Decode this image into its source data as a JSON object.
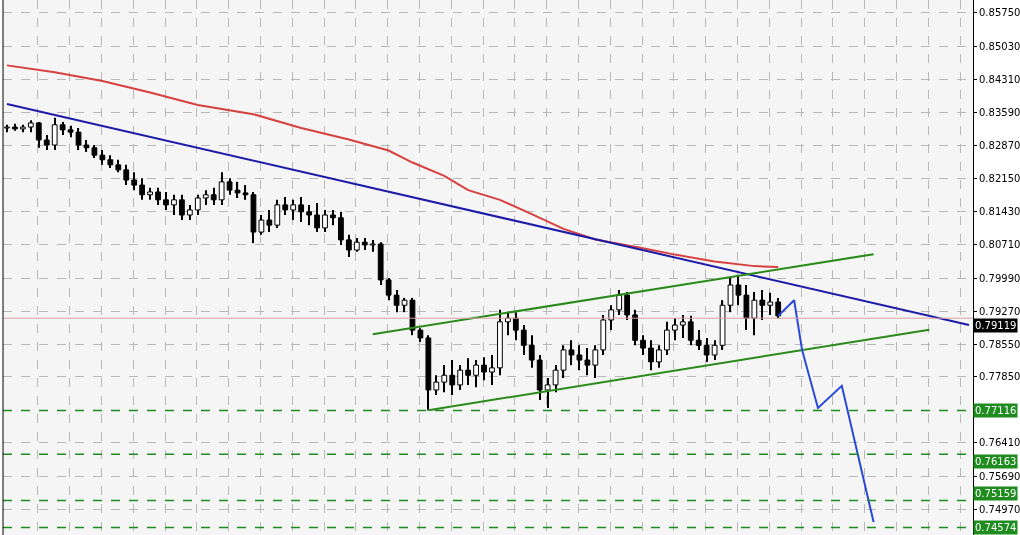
{
  "chart_data": {
    "type": "candlestick",
    "categories": [
      null,
      null,
      null,
      null,
      null,
      null,
      null,
      null,
      null,
      null,
      null,
      null,
      null,
      null,
      null,
      null,
      null,
      null,
      null,
      null,
      null,
      null,
      null,
      null,
      null,
      null,
      null,
      null,
      null,
      null,
      null,
      null,
      null,
      null,
      null,
      null,
      null,
      null,
      null,
      null,
      null,
      null,
      null,
      null,
      null,
      null,
      null,
      null,
      null,
      null,
      null,
      null,
      null,
      null,
      null,
      null,
      null,
      null,
      null,
      null,
      null,
      null,
      null,
      null,
      null,
      null,
      null,
      null,
      null,
      null,
      null,
      null,
      null,
      null,
      null,
      null,
      null,
      null,
      null,
      null,
      null,
      null,
      null,
      null,
      null,
      null,
      null,
      null,
      null,
      null,
      null,
      null,
      null,
      null,
      null,
      null,
      null,
      null,
      null,
      null,
      null,
      null,
      null,
      null,
      null,
      null,
      null,
      null,
      null,
      null,
      null,
      null,
      null,
      null,
      null,
      null,
      null,
      null,
      null,
      null,
      null,
      null
    ],
    "ohlc": [
      [
        0.8325,
        0.8332,
        0.8316,
        0.8327
      ],
      [
        0.8327,
        0.8334,
        0.8319,
        0.8323
      ],
      [
        0.8323,
        0.8332,
        0.8316,
        0.8327
      ],
      [
        0.8327,
        0.8342,
        0.8316,
        0.8336
      ],
      [
        0.8336,
        0.8338,
        0.8282,
        0.8299
      ],
      [
        0.8299,
        0.831,
        0.8277,
        0.8288
      ],
      [
        0.8288,
        0.8347,
        0.8277,
        0.8332
      ],
      [
        0.8332,
        0.8338,
        0.831,
        0.8321
      ],
      [
        0.8321,
        0.833,
        0.8305,
        0.8316
      ],
      [
        0.8316,
        0.8325,
        0.8277,
        0.8288
      ],
      [
        0.8288,
        0.8299,
        0.8273,
        0.8282
      ],
      [
        0.8282,
        0.8288,
        0.826,
        0.8266
      ],
      [
        0.8266,
        0.8277,
        0.8245,
        0.8256
      ],
      [
        0.8256,
        0.8266,
        0.8238,
        0.8245
      ],
      [
        0.8245,
        0.8256,
        0.8229,
        0.8234
      ],
      [
        0.8234,
        0.8245,
        0.8201,
        0.8212
      ],
      [
        0.8212,
        0.8229,
        0.819,
        0.8201
      ],
      [
        0.8201,
        0.8216,
        0.8169,
        0.818
      ],
      [
        0.818,
        0.8195,
        0.8169,
        0.8186
      ],
      [
        0.8186,
        0.8195,
        0.8158,
        0.8169
      ],
      [
        0.8169,
        0.8186,
        0.8147,
        0.8158
      ],
      [
        0.8158,
        0.818,
        0.8136,
        0.8169
      ],
      [
        0.8169,
        0.818,
        0.8125,
        0.8136
      ],
      [
        0.8136,
        0.8158,
        0.8125,
        0.8147
      ],
      [
        0.8147,
        0.818,
        0.8136,
        0.8173
      ],
      [
        0.8173,
        0.819,
        0.8158,
        0.818
      ],
      [
        0.818,
        0.8195,
        0.8158,
        0.8169
      ],
      [
        0.8169,
        0.8229,
        0.8158,
        0.8208
      ],
      [
        0.8208,
        0.8216,
        0.818,
        0.819
      ],
      [
        0.819,
        0.8208,
        0.8173,
        0.8184
      ],
      [
        0.8184,
        0.8201,
        0.8169,
        0.818
      ],
      [
        0.818,
        0.8186,
        0.8075,
        0.8099
      ],
      [
        0.8099,
        0.8136,
        0.8093,
        0.8125
      ],
      [
        0.8125,
        0.8147,
        0.8099,
        0.8114
      ],
      [
        0.8114,
        0.8169,
        0.8108,
        0.8158
      ],
      [
        0.8158,
        0.8175,
        0.8136,
        0.8147
      ],
      [
        0.8147,
        0.8169,
        0.8125,
        0.8158
      ],
      [
        0.8158,
        0.8175,
        0.8121,
        0.8143
      ],
      [
        0.8143,
        0.8158,
        0.8114,
        0.8136
      ],
      [
        0.8136,
        0.8162,
        0.8099,
        0.8108
      ],
      [
        0.8108,
        0.8147,
        0.8099,
        0.8136
      ],
      [
        0.8136,
        0.8147,
        0.8114,
        0.813
      ],
      [
        0.813,
        0.8143,
        0.8071,
        0.8082
      ],
      [
        0.8082,
        0.8093,
        0.8045,
        0.806
      ],
      [
        0.806,
        0.8086,
        0.8056,
        0.8077
      ],
      [
        0.8077,
        0.8086,
        0.806,
        0.8071
      ],
      [
        0.8071,
        0.8082,
        0.8056,
        0.8073
      ],
      [
        0.8073,
        0.8077,
        0.7984,
        0.7995
      ],
      [
        0.7995,
        0.7999,
        0.7951,
        0.7962
      ],
      [
        0.7962,
        0.7973,
        0.7925,
        0.794
      ],
      [
        0.794,
        0.7956,
        0.7925,
        0.7951
      ],
      [
        0.7951,
        0.7956,
        0.7875,
        0.7886
      ],
      [
        0.7886,
        0.789,
        0.786,
        0.7869
      ],
      [
        0.7869,
        0.7875,
        0.7712,
        0.7756
      ],
      [
        0.7756,
        0.7788,
        0.7745,
        0.7773
      ],
      [
        0.7773,
        0.781,
        0.7751,
        0.7788
      ],
      [
        0.7788,
        0.7821,
        0.7745,
        0.7767
      ],
      [
        0.7767,
        0.781,
        0.7756,
        0.7799
      ],
      [
        0.7799,
        0.7825,
        0.7767,
        0.7788
      ],
      [
        0.7788,
        0.7821,
        0.7762,
        0.781
      ],
      [
        0.781,
        0.7827,
        0.7777,
        0.7795
      ],
      [
        0.7795,
        0.7832,
        0.7767,
        0.7804
      ],
      [
        0.7804,
        0.793,
        0.7788,
        0.7904
      ],
      [
        0.7904,
        0.7923,
        0.7875,
        0.7912
      ],
      [
        0.7912,
        0.7925,
        0.7864,
        0.7886
      ],
      [
        0.7886,
        0.7897,
        0.7832,
        0.7853
      ],
      [
        0.7853,
        0.7875,
        0.7804,
        0.7821
      ],
      [
        0.7821,
        0.7832,
        0.7734,
        0.7756
      ],
      [
        0.7756,
        0.7782,
        0.7717,
        0.7767
      ],
      [
        0.7767,
        0.781,
        0.7751,
        0.7799
      ],
      [
        0.7799,
        0.7853,
        0.7782,
        0.7843
      ],
      [
        0.7843,
        0.7864,
        0.781,
        0.7832
      ],
      [
        0.7832,
        0.7853,
        0.7799,
        0.7821
      ],
      [
        0.7821,
        0.7847,
        0.7788,
        0.781
      ],
      [
        0.781,
        0.7853,
        0.7782,
        0.7843
      ],
      [
        0.7843,
        0.7919,
        0.7832,
        0.7908
      ],
      [
        0.7908,
        0.794,
        0.7886,
        0.793
      ],
      [
        0.793,
        0.7973,
        0.7919,
        0.7962
      ],
      [
        0.7962,
        0.7969,
        0.7908,
        0.7919
      ],
      [
        0.7919,
        0.793,
        0.7853,
        0.7864
      ],
      [
        0.7864,
        0.7875,
        0.7832,
        0.7847
      ],
      [
        0.7847,
        0.7864,
        0.7799,
        0.7817
      ],
      [
        0.7817,
        0.7853,
        0.7804,
        0.7843
      ],
      [
        0.7843,
        0.7904,
        0.7832,
        0.7886
      ],
      [
        0.7886,
        0.7912,
        0.7864,
        0.7897
      ],
      [
        0.7897,
        0.7919,
        0.7869,
        0.7904
      ],
      [
        0.7904,
        0.7917,
        0.7853,
        0.7864
      ],
      [
        0.7864,
        0.7886,
        0.7843,
        0.7853
      ],
      [
        0.7853,
        0.7869,
        0.7817,
        0.7832
      ],
      [
        0.7832,
        0.7864,
        0.7821,
        0.7853
      ],
      [
        0.7853,
        0.7951,
        0.7843,
        0.794
      ],
      [
        0.794,
        0.7999,
        0.7925,
        0.7984
      ],
      [
        0.7984,
        0.8006,
        0.794,
        0.7962
      ],
      [
        0.7962,
        0.7984,
        0.7886,
        0.7912
      ],
      [
        0.7912,
        0.7969,
        0.7875,
        0.7951
      ],
      [
        0.7951,
        0.7973,
        0.7908,
        0.794
      ],
      [
        0.794,
        0.7967,
        0.7919,
        0.7947
      ],
      [
        0.7947,
        0.7956,
        0.7912,
        0.7917
      ],
      null,
      null,
      null,
      null,
      null,
      null,
      null,
      null,
      null,
      null,
      null,
      null,
      null,
      null,
      null,
      null,
      null,
      null,
      null,
      null,
      null,
      null,
      null,
      null
    ],
    "series": [
      {
        "type": "line",
        "color": "#d84040",
        "values": [
          0.8461,
          null,
          null,
          null,
          null,
          null,
          0.8446,
          null,
          null,
          null,
          null,
          null,
          0.8427,
          null,
          null,
          null,
          null,
          null,
          0.8402,
          null,
          null,
          null,
          null,
          null,
          0.8375,
          null,
          null,
          null,
          null,
          null,
          null,
          0.8355,
          null,
          null,
          null,
          null,
          null,
          0.8325,
          null,
          null,
          null,
          null,
          null,
          0.83,
          null,
          null,
          null,
          null,
          0.8276,
          null,
          null,
          0.825,
          null,
          null,
          null,
          0.8221,
          null,
          null,
          0.819,
          null,
          null,
          null,
          0.8169,
          null,
          null,
          null,
          0.8138,
          null,
          null,
          null,
          0.8106,
          null,
          null,
          null,
          0.8083,
          null,
          null,
          null,
          null,
          null,
          0.8064,
          null,
          null,
          null,
          0.805,
          null,
          null,
          null,
          null,
          0.8035,
          null,
          null,
          null,
          null,
          0.8025,
          null,
          null,
          0.8023,
          null,
          null,
          null,
          null,
          null,
          null,
          null,
          null,
          null,
          null,
          null,
          null,
          null,
          null,
          null,
          null,
          null,
          null,
          null,
          null,
          null,
          null,
          null,
          null
        ]
      },
      {
        "type": "line",
        "color": "#1c1ca8",
        "values": [
          0.8377,
          null,
          null,
          null,
          null,
          null,
          null,
          null,
          null,
          null,
          null,
          null,
          null,
          null,
          null,
          null,
          null,
          null,
          null,
          null,
          null,
          null,
          null,
          null,
          null,
          null,
          null,
          null,
          null,
          null,
          null,
          null,
          null,
          null,
          null,
          null,
          null,
          null,
          null,
          null,
          null,
          null,
          null,
          null,
          null,
          null,
          null,
          null,
          null,
          null,
          null,
          null,
          null,
          null,
          null,
          null,
          null,
          null,
          null,
          null,
          null,
          null,
          null,
          null,
          null,
          null,
          null,
          null,
          null,
          null,
          null,
          null,
          null,
          null,
          null,
          null,
          null,
          null,
          null,
          null,
          null,
          null,
          null,
          null,
          null,
          null,
          null,
          null,
          null,
          null,
          null,
          null,
          null,
          null,
          null,
          null,
          null,
          null,
          null,
          null,
          null,
          null,
          null,
          null,
          null,
          null,
          null,
          null,
          null,
          null,
          null,
          null,
          null,
          null,
          null,
          null,
          null,
          null,
          null,
          null,
          null,
          0.7897
        ]
      },
      {
        "type": "line",
        "color": "#2a8a1a",
        "values": [
          null,
          null,
          null,
          null,
          null,
          null,
          null,
          null,
          null,
          null,
          null,
          null,
          null,
          null,
          null,
          null,
          null,
          null,
          null,
          null,
          null,
          null,
          null,
          null,
          null,
          null,
          null,
          null,
          null,
          null,
          null,
          null,
          null,
          null,
          null,
          null,
          null,
          null,
          null,
          null,
          null,
          null,
          null,
          null,
          null,
          null,
          0.7877,
          null,
          null,
          null,
          null,
          null,
          null,
          null,
          null,
          null,
          null,
          null,
          null,
          null,
          null,
          null,
          null,
          null,
          null,
          null,
          null,
          null,
          null,
          null,
          null,
          null,
          null,
          null,
          null,
          null,
          null,
          null,
          null,
          null,
          null,
          null,
          null,
          null,
          null,
          null,
          null,
          null,
          null,
          null,
          null,
          null,
          null,
          null,
          null,
          null,
          null,
          null,
          null,
          null,
          null,
          null,
          null,
          null,
          null,
          null,
          null,
          null,
          null,
          0.8051,
          null,
          null,
          null,
          null,
          null,
          null,
          null,
          null,
          null,
          null,
          null,
          null
        ]
      },
      {
        "type": "line",
        "color": "#2a8a1a",
        "values": [
          null,
          null,
          null,
          null,
          null,
          null,
          null,
          null,
          null,
          null,
          null,
          null,
          null,
          null,
          null,
          null,
          null,
          null,
          null,
          null,
          null,
          null,
          null,
          null,
          null,
          null,
          null,
          null,
          null,
          null,
          null,
          null,
          null,
          null,
          null,
          null,
          null,
          null,
          null,
          null,
          null,
          null,
          null,
          null,
          null,
          null,
          null,
          null,
          null,
          null,
          null,
          null,
          null,
          0.7712,
          null,
          null,
          null,
          null,
          null,
          null,
          null,
          null,
          null,
          null,
          null,
          null,
          null,
          null,
          null,
          null,
          null,
          null,
          null,
          null,
          null,
          null,
          null,
          null,
          null,
          null,
          null,
          null,
          null,
          null,
          null,
          null,
          null,
          null,
          null,
          null,
          null,
          null,
          null,
          null,
          null,
          null,
          null,
          null,
          null,
          null,
          null,
          null,
          null,
          null,
          null,
          null,
          null,
          null,
          null,
          null,
          null,
          null,
          null,
          null,
          null,
          null,
          0.7887,
          null,
          null,
          null,
          null,
          null
        ]
      },
      {
        "type": "line",
        "color": "#2848d8",
        "values": [
          null,
          null,
          null,
          null,
          null,
          null,
          null,
          null,
          null,
          null,
          null,
          null,
          null,
          null,
          null,
          null,
          null,
          null,
          null,
          null,
          null,
          null,
          null,
          null,
          null,
          null,
          null,
          null,
          null,
          null,
          null,
          null,
          null,
          null,
          null,
          null,
          null,
          null,
          null,
          null,
          null,
          null,
          null,
          null,
          null,
          null,
          null,
          null,
          null,
          null,
          null,
          null,
          null,
          null,
          null,
          null,
          null,
          null,
          null,
          null,
          null,
          null,
          null,
          null,
          null,
          null,
          null,
          null,
          null,
          null,
          null,
          null,
          null,
          null,
          null,
          null,
          null,
          null,
          null,
          null,
          null,
          null,
          null,
          null,
          null,
          null,
          null,
          null,
          null,
          null,
          null,
          null,
          null,
          null,
          null,
          null,
          null,
          0.7917,
          null,
          0.7951,
          0.7843,
          null,
          0.7717,
          null,
          null,
          0.7765,
          null,
          null,
          null,
          0.7469,
          null,
          null,
          null,
          null,
          null,
          null,
          null,
          null,
          null,
          null,
          null,
          null
        ]
      }
    ],
    "ref_lines": [
      {
        "axis": "y",
        "value": 0.79119,
        "label": "0.79119",
        "color": "#d8a0a0",
        "line_style": "solid"
      },
      {
        "axis": "y",
        "value": 0.77116,
        "label": "0.77116",
        "color": "#1e8c1e",
        "line_style": "dashed"
      },
      {
        "axis": "y",
        "value": 0.76163,
        "label": "0.76163",
        "color": "#1e8c1e",
        "line_style": "dashed"
      },
      {
        "axis": "y",
        "value": 0.75159,
        "label": "0.75159",
        "color": "#1e8c1e",
        "line_style": "dashed"
      },
      {
        "axis": "y",
        "value": 0.74574,
        "label": "0.74574",
        "color": "#1e8c1e",
        "line_style": "dashed"
      }
    ],
    "ylim": [
      0.7441,
      0.8603
    ],
    "yticks": [
      {
        "value": 0.8575,
        "label": "0.85750"
      },
      {
        "value": 0.8503,
        "label": "0.85030"
      },
      {
        "value": 0.8431,
        "label": "0.84310"
      },
      {
        "value": 0.8359,
        "label": "0.83590"
      },
      {
        "value": 0.8287,
        "label": "0.82870"
      },
      {
        "value": 0.8215,
        "label": "0.82150"
      },
      {
        "value": 0.8143,
        "label": "0.81430"
      },
      {
        "value": 0.8071,
        "label": "0.80710"
      },
      {
        "value": 0.7999,
        "label": "0.79990"
      },
      {
        "value": 0.7927,
        "label": "0.79270"
      },
      {
        "value": 0.7855,
        "label": "0.78550"
      },
      {
        "value": 0.7785,
        "label": "0.77850"
      },
      {
        "value": 0.7641,
        "label": "0.76410"
      },
      {
        "value": 0.7569,
        "label": "0.75690"
      },
      {
        "value": 0.7497,
        "label": "0.74970"
      }
    ],
    "tick_labels": "y",
    "grid": true
  }
}
